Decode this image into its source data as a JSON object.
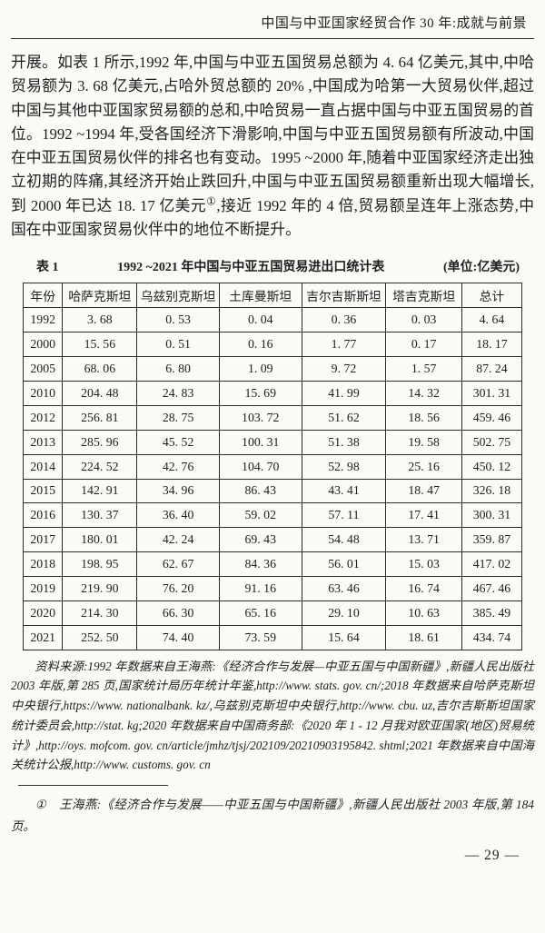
{
  "header": {
    "running_title": "中国与中亚国家经贸合作 30 年:成就与前景"
  },
  "body": {
    "paragraph_part1": "开展。如表 1 所示,1992 年,中国与中亚五国贸易总额为 4. 64 亿美元,其中,中哈贸易额为 3. 68 亿美元,占哈外贸总额的 20% ,中国成为哈第一大贸易伙伴,超过中国与其他中亚国家贸易额的总和,中哈贸易一直占据中国与中亚五国贸易的首位。1992 ~1994 年,受各国经济下滑影响,中国与中亚五国贸易额有所波动,中国在中亚五国贸易伙伴的排名也有变动。1995 ~2000 年,随着中亚国家经济走出独立初期的阵痛,其经济开始止跌回升,中国与中亚五国贸易额重新出现大幅增长,到 2000 年已达 18. 17 亿美元",
    "footnote_marker": "①",
    "paragraph_part2": ",接近 1992 年的 4 倍,贸易额呈连年上涨态势,中国在中亚国家贸易伙伴中的地位不断提升。"
  },
  "table": {
    "caption": {
      "label": "表 1",
      "title": "1992 ~2021 年中国与中亚五国贸易进出口统计表",
      "unit": "(单位:亿美元)"
    },
    "columns": [
      "年份",
      "哈萨克斯坦",
      "乌兹别克斯坦",
      "土库曼斯坦",
      "吉尔吉斯斯坦",
      "塔吉克斯坦",
      "总计"
    ],
    "rows": [
      [
        "1992",
        "3. 68",
        "0. 53",
        "0. 04",
        "0. 36",
        "0. 03",
        "4. 64"
      ],
      [
        "2000",
        "15. 56",
        "0. 51",
        "0. 16",
        "1. 77",
        "0. 17",
        "18. 17"
      ],
      [
        "2005",
        "68. 06",
        "6. 80",
        "1. 09",
        "9. 72",
        "1. 57",
        "87. 24"
      ],
      [
        "2010",
        "204. 48",
        "24. 83",
        "15. 69",
        "41. 99",
        "14. 32",
        "301. 31"
      ],
      [
        "2012",
        "256. 81",
        "28. 75",
        "103. 72",
        "51. 62",
        "18. 56",
        "459. 46"
      ],
      [
        "2013",
        "285. 96",
        "45. 52",
        "100. 31",
        "51. 38",
        "19. 58",
        "502. 75"
      ],
      [
        "2014",
        "224. 52",
        "42. 76",
        "104. 70",
        "52. 98",
        "25. 16",
        "450. 12"
      ],
      [
        "2015",
        "142. 91",
        "34. 96",
        "86. 43",
        "43. 41",
        "18. 47",
        "326. 18"
      ],
      [
        "2016",
        "130. 37",
        "36. 40",
        "59. 02",
        "57. 11",
        "17. 41",
        "300. 31"
      ],
      [
        "2017",
        "180. 01",
        "42. 24",
        "69. 43",
        "54. 48",
        "13. 71",
        "359. 87"
      ],
      [
        "2018",
        "198. 95",
        "62. 67",
        "84. 36",
        "56. 01",
        "15. 03",
        "417. 02"
      ],
      [
        "2019",
        "219. 90",
        "76. 20",
        "91. 16",
        "63. 46",
        "16. 74",
        "467. 46"
      ],
      [
        "2020",
        "214. 30",
        "66. 30",
        "65. 16",
        "29. 10",
        "10. 63",
        "385. 49"
      ],
      [
        "2021",
        "252. 50",
        "74. 40",
        "73. 59",
        "15. 64",
        "18. 61",
        "434. 74"
      ]
    ]
  },
  "source_note": "资料来源:1992 年数据来自王海燕:《经济合作与发展—中亚五国与中国新疆》,新疆人民出版社 2003 年版,第 285 页,国家统计局历年统计年鉴,http://www. stats. gov. cn/;2018 年数据来自哈萨克斯坦中央银行,https://www. nationalbank. kz/,乌兹别克斯坦中央银行,http://www. cbu. uz,吉尔吉斯斯坦国家统计委员会,http://stat. kg;2020 年数据来自中国商务部:《2020 年 1 - 12 月我对欧亚国家(地区)贸易统计》,http://oys. mofcom. gov. cn/article/jmhz/tjsj/202109/20210903195842. shtml;2021 年数据来自中国海关统计公报,http://www. customs. gov. cn",
  "footnote": {
    "marker": "①",
    "text": "王海燕:《经济合作与发展——中亚五国与中国新疆》,新疆人民出版社 2003 年版,第 184 页。"
  },
  "page_number": "— 29 —"
}
